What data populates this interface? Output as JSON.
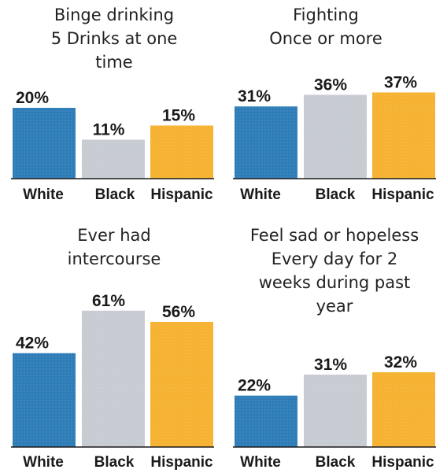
{
  "colors": {
    "white": "#2f7db8",
    "black": "#c7cbd2",
    "hispanic": "#f6b231"
  },
  "chart_data": [
    {
      "type": "bar",
      "title": "Binge drinking\n5 Drinks at one\ntime",
      "categories": [
        "White",
        "Black",
        "Hispanic"
      ],
      "values": [
        20,
        11,
        15
      ],
      "value_labels": [
        "20%",
        "11%",
        "15%"
      ]
    },
    {
      "type": "bar",
      "title": "Fighting\nOnce or more",
      "categories": [
        "White",
        "Black",
        "Hispanic"
      ],
      "values": [
        31,
        36,
        37
      ],
      "value_labels": [
        "31%",
        "36%",
        "37%"
      ]
    },
    {
      "type": "bar",
      "title": "Ever had\nintercourse",
      "categories": [
        "White",
        "Black",
        "Hispanic"
      ],
      "values": [
        42,
        61,
        56
      ],
      "value_labels": [
        "42%",
        "61%",
        "56%"
      ]
    },
    {
      "type": "bar",
      "title": "Feel sad or hopeless\nEvery day for 2\nweeks during past\nyear",
      "categories": [
        "White",
        "Black",
        "Hispanic"
      ],
      "values": [
        22,
        31,
        32
      ],
      "value_labels": [
        "22%",
        "31%",
        "32%"
      ]
    }
  ]
}
